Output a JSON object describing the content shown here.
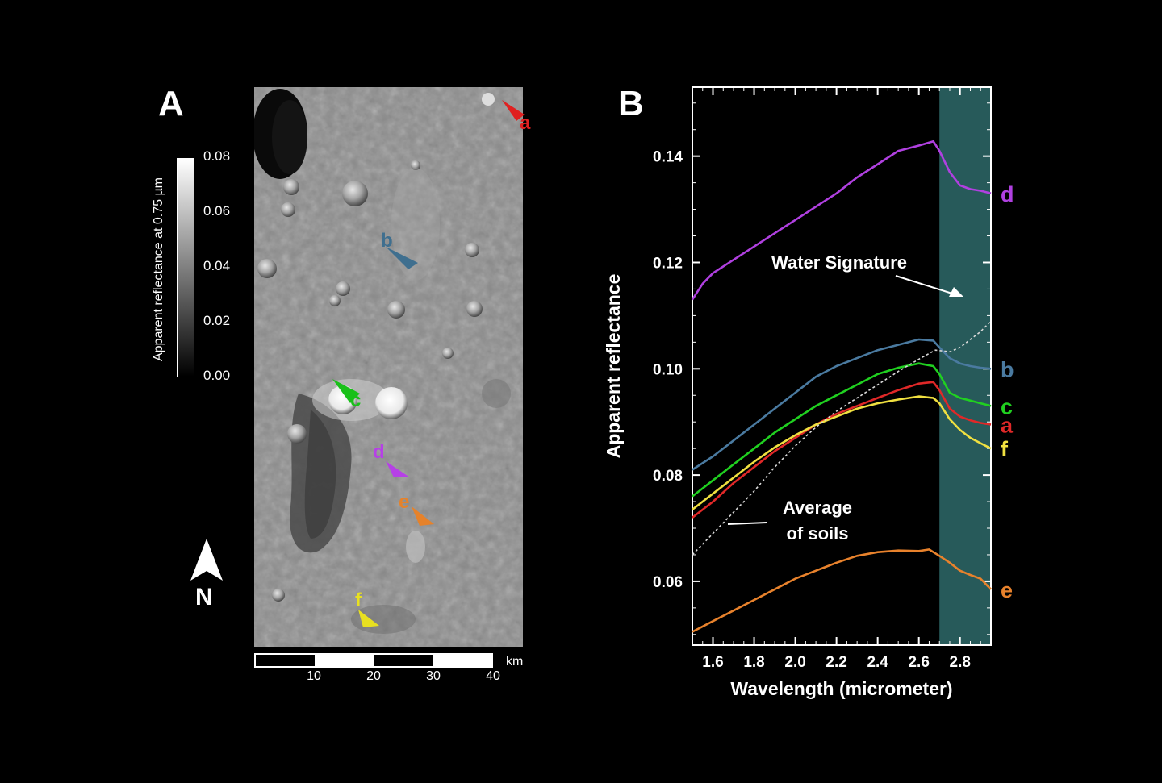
{
  "panel_a": {
    "letter": "A",
    "colorbar": {
      "label": "Apparent reflectance at 0.75 µm",
      "ticks": [
        "0.08",
        "0.06",
        "0.04",
        "0.02",
        "0.00"
      ]
    },
    "north_label": "N",
    "scale_bar": {
      "ticks": [
        "10",
        "20",
        "30",
        "40"
      ],
      "unit": "km"
    },
    "markers": [
      {
        "letter": "a",
        "color": "#e02020"
      },
      {
        "letter": "b",
        "color": "#3f6f8f"
      },
      {
        "letter": "c",
        "color": "#19c019"
      },
      {
        "letter": "d",
        "color": "#b640e6"
      },
      {
        "letter": "e",
        "color": "#e6822a"
      },
      {
        "letter": "f",
        "color": "#e8e020"
      }
    ]
  },
  "panel_b": {
    "letter": "B"
  },
  "chart_data": {
    "type": "line",
    "xlabel": "Wavelength (micrometer)",
    "ylabel": "Apparent reflectance",
    "xlim": [
      1.5,
      2.95
    ],
    "ylim": [
      0.048,
      0.153
    ],
    "xticks": [
      "1.6",
      "1.8",
      "2.0",
      "2.2",
      "2.4",
      "2.6",
      "2.8"
    ],
    "yticks": [
      "0.06",
      "0.08",
      "0.10",
      "0.12",
      "0.14"
    ],
    "highlight_band": {
      "x0": 2.7,
      "x1": 2.95,
      "color": "#2e6a6a"
    },
    "annotations": [
      {
        "text": "Water Signature"
      },
      {
        "text": "Average"
      },
      {
        "text": "of soils"
      }
    ],
    "series": [
      {
        "name": "d",
        "color": "#b040e0",
        "x": [
          1.5,
          1.55,
          1.6,
          1.7,
          1.8,
          1.9,
          2.0,
          2.1,
          2.2,
          2.3,
          2.4,
          2.5,
          2.6,
          2.67,
          2.7,
          2.75,
          2.8,
          2.85,
          2.9,
          2.95
        ],
        "y": [
          0.113,
          0.116,
          0.118,
          0.1205,
          0.123,
          0.1255,
          0.128,
          0.1305,
          0.133,
          0.136,
          0.1385,
          0.141,
          0.142,
          0.1428,
          0.141,
          0.137,
          0.1345,
          0.1338,
          0.1335,
          0.133
        ]
      },
      {
        "name": "b",
        "color": "#4a7aa0",
        "x": [
          1.5,
          1.6,
          1.7,
          1.8,
          1.9,
          2.0,
          2.1,
          2.2,
          2.3,
          2.4,
          2.5,
          2.6,
          2.67,
          2.7,
          2.75,
          2.8,
          2.85,
          2.9,
          2.95
        ],
        "y": [
          0.081,
          0.0835,
          0.0865,
          0.0895,
          0.0925,
          0.0955,
          0.0985,
          0.1005,
          0.102,
          0.1035,
          0.1045,
          0.1055,
          0.1053,
          0.104,
          0.102,
          0.101,
          0.1005,
          0.1002,
          0.1
        ]
      },
      {
        "name": "c",
        "color": "#20d020",
        "x": [
          1.5,
          1.6,
          1.7,
          1.8,
          1.9,
          2.0,
          2.1,
          2.2,
          2.3,
          2.4,
          2.5,
          2.6,
          2.67,
          2.7,
          2.75,
          2.8,
          2.85,
          2.9,
          2.95
        ],
        "y": [
          0.076,
          0.079,
          0.082,
          0.085,
          0.088,
          0.0905,
          0.093,
          0.095,
          0.097,
          0.099,
          0.1002,
          0.101,
          0.1005,
          0.099,
          0.0955,
          0.0945,
          0.094,
          0.0935,
          0.093
        ]
      },
      {
        "name": "a",
        "color": "#e02828",
        "x": [
          1.5,
          1.6,
          1.7,
          1.8,
          1.9,
          2.0,
          2.1,
          2.2,
          2.3,
          2.4,
          2.5,
          2.6,
          2.67,
          2.7,
          2.75,
          2.8,
          2.85,
          2.9,
          2.95
        ],
        "y": [
          0.072,
          0.075,
          0.0785,
          0.0815,
          0.0845,
          0.087,
          0.0895,
          0.0915,
          0.093,
          0.0945,
          0.096,
          0.0972,
          0.0975,
          0.096,
          0.0925,
          0.091,
          0.0903,
          0.0898,
          0.0895
        ]
      },
      {
        "name": "f",
        "color": "#f0e040",
        "x": [
          1.5,
          1.6,
          1.7,
          1.8,
          1.9,
          2.0,
          2.1,
          2.2,
          2.3,
          2.4,
          2.5,
          2.6,
          2.67,
          2.7,
          2.75,
          2.8,
          2.85,
          2.9,
          2.95
        ],
        "y": [
          0.0735,
          0.0765,
          0.0795,
          0.0825,
          0.0852,
          0.0875,
          0.0895,
          0.091,
          0.0925,
          0.0935,
          0.0942,
          0.0948,
          0.0945,
          0.0935,
          0.0905,
          0.0885,
          0.087,
          0.086,
          0.085
        ]
      },
      {
        "name": "e",
        "color": "#e8822c",
        "x": [
          1.5,
          1.6,
          1.7,
          1.8,
          1.9,
          2.0,
          2.1,
          2.2,
          2.3,
          2.4,
          2.5,
          2.6,
          2.65,
          2.7,
          2.75,
          2.8,
          2.85,
          2.9,
          2.95
        ],
        "y": [
          0.0505,
          0.0525,
          0.0545,
          0.0565,
          0.0585,
          0.0605,
          0.062,
          0.0635,
          0.0648,
          0.0655,
          0.0658,
          0.0657,
          0.066,
          0.0648,
          0.0635,
          0.062,
          0.0612,
          0.0605,
          0.0585
        ]
      },
      {
        "name": "",
        "color": "#d8d8d8",
        "dashed": true,
        "x": [
          1.5,
          1.6,
          1.7,
          1.8,
          1.9,
          2.0,
          2.1,
          2.2,
          2.3,
          2.4,
          2.5,
          2.6,
          2.68,
          2.75,
          2.8,
          2.85,
          2.9,
          2.95
        ],
        "y": [
          0.065,
          0.069,
          0.073,
          0.077,
          0.0815,
          0.0855,
          0.089,
          0.092,
          0.0945,
          0.097,
          0.0995,
          0.1018,
          0.1035,
          0.1032,
          0.104,
          0.1055,
          0.107,
          0.109
        ]
      }
    ]
  }
}
